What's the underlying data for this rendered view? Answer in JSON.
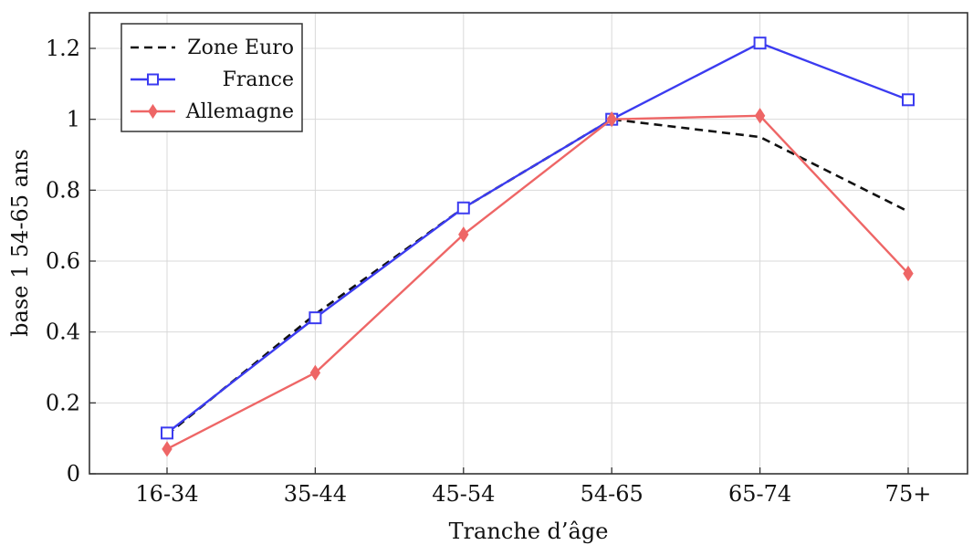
{
  "chart_data": {
    "type": "line",
    "xlabel": "Tranche d’âge",
    "ylabel": "base 1 54-65 ans",
    "categories": [
      "16-34",
      "35-44",
      "45-54",
      "54-65",
      "65-74",
      "75+"
    ],
    "ylim": [
      0,
      1.3
    ],
    "yticks": [
      "0",
      "0.2",
      "0.4",
      "0.6",
      "0.8",
      "1",
      "1.2"
    ],
    "ytick_values": [
      0,
      0.2,
      0.4,
      0.6,
      0.8,
      1,
      1.2
    ],
    "grid": true,
    "legend_position": "top-left",
    "series": [
      {
        "name": "Zone Euro",
        "values": [
          0.11,
          0.45,
          0.75,
          1.0,
          0.95,
          0.74
        ],
        "color": "#111111",
        "style": "dashed",
        "marker": "none"
      },
      {
        "name": "France",
        "values": [
          0.115,
          0.44,
          0.75,
          1.0,
          1.215,
          1.055
        ],
        "color": "#3b3bf0",
        "style": "solid",
        "marker": "square"
      },
      {
        "name": "Allemagne",
        "values": [
          0.07,
          0.285,
          0.675,
          1.0,
          1.01,
          0.565
        ],
        "color": "#ee6666",
        "style": "solid",
        "marker": "diamond"
      }
    ]
  }
}
